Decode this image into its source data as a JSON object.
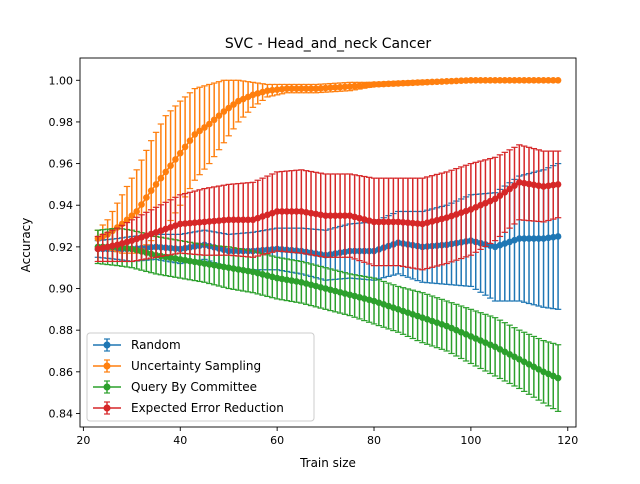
{
  "chart_data": {
    "type": "line",
    "title": "SVC - Head_and_neck Cancer",
    "xlabel": "Train size",
    "ylabel": "Accuracy",
    "xlim": [
      19.3,
      121.7
    ],
    "ylim": [
      0.8335,
      1.0107
    ],
    "xticks": [
      20,
      40,
      60,
      80,
      100,
      120
    ],
    "yticks": [
      0.84,
      0.86,
      0.88,
      0.9,
      0.92,
      0.94,
      0.96,
      0.98,
      1.0
    ],
    "ytick_labels": [
      "0.84",
      "0.86",
      "0.88",
      "0.90",
      "0.92",
      "0.94",
      "0.96",
      "0.98",
      "1.00"
    ],
    "grid": false,
    "legend_position": "lower-left",
    "x_range": [
      23,
      118
    ],
    "series": [
      {
        "name": "Random",
        "color": "#1f77b4",
        "anchors_x": [
          23,
          27,
          30,
          35,
          40,
          45,
          50,
          55,
          60,
          65,
          70,
          75,
          80,
          85,
          90,
          95,
          100,
          105,
          110,
          115,
          118
        ],
        "anchors_y": [
          0.919,
          0.919,
          0.919,
          0.92,
          0.919,
          0.921,
          0.918,
          0.918,
          0.919,
          0.918,
          0.916,
          0.918,
          0.918,
          0.922,
          0.92,
          0.921,
          0.923,
          0.92,
          0.924,
          0.924,
          0.925
        ],
        "anchors_err": [
          0.004,
          0.005,
          0.006,
          0.006,
          0.007,
          0.007,
          0.008,
          0.009,
          0.01,
          0.011,
          0.012,
          0.013,
          0.014,
          0.015,
          0.017,
          0.019,
          0.022,
          0.026,
          0.03,
          0.033,
          0.035
        ]
      },
      {
        "name": "Uncertainty Sampling",
        "color": "#ff7f0e",
        "anchors_x": [
          23,
          25,
          28,
          31,
          34,
          37,
          40,
          43,
          46,
          49,
          52,
          55,
          58,
          62,
          68,
          75,
          80,
          90,
          100,
          118
        ],
        "anchors_y": [
          0.924,
          0.926,
          0.931,
          0.937,
          0.947,
          0.956,
          0.965,
          0.974,
          0.979,
          0.985,
          0.99,
          0.993,
          0.995,
          0.996,
          0.996,
          0.997,
          0.998,
          0.999,
          1.0,
          1.0
        ],
        "anchors_err": [
          0.004,
          0.007,
          0.014,
          0.02,
          0.024,
          0.027,
          0.025,
          0.022,
          0.019,
          0.015,
          0.01,
          0.006,
          0.003,
          0.002,
          0.002,
          0.002,
          0.001,
          0.001,
          0.0,
          0.0
        ]
      },
      {
        "name": "Query By Committee",
        "color": "#2ca02c",
        "anchors_x": [
          23,
          27,
          30,
          35,
          40,
          45,
          50,
          55,
          60,
          65,
          70,
          75,
          80,
          85,
          90,
          95,
          100,
          105,
          110,
          115,
          118
        ],
        "anchors_y": [
          0.92,
          0.92,
          0.919,
          0.916,
          0.914,
          0.912,
          0.91,
          0.908,
          0.905,
          0.903,
          0.9,
          0.897,
          0.894,
          0.89,
          0.886,
          0.882,
          0.877,
          0.872,
          0.866,
          0.86,
          0.857
        ],
        "anchors_err": [
          0.008,
          0.009,
          0.009,
          0.009,
          0.009,
          0.009,
          0.01,
          0.01,
          0.01,
          0.01,
          0.01,
          0.01,
          0.011,
          0.011,
          0.012,
          0.012,
          0.013,
          0.014,
          0.014,
          0.015,
          0.016
        ]
      },
      {
        "name": "Expected Error Reduction",
        "color": "#d62728",
        "anchors_x": [
          23,
          27,
          30,
          35,
          40,
          45,
          50,
          55,
          60,
          65,
          70,
          75,
          80,
          85,
          90,
          95,
          100,
          105,
          110,
          115,
          118
        ],
        "anchors_y": [
          0.919,
          0.921,
          0.923,
          0.927,
          0.931,
          0.932,
          0.933,
          0.933,
          0.937,
          0.937,
          0.935,
          0.935,
          0.932,
          0.932,
          0.931,
          0.934,
          0.938,
          0.943,
          0.951,
          0.949,
          0.95
        ],
        "anchors_err": [
          0.006,
          0.008,
          0.01,
          0.012,
          0.014,
          0.016,
          0.017,
          0.018,
          0.019,
          0.02,
          0.02,
          0.02,
          0.021,
          0.021,
          0.022,
          0.022,
          0.022,
          0.02,
          0.018,
          0.017,
          0.016
        ]
      }
    ]
  }
}
